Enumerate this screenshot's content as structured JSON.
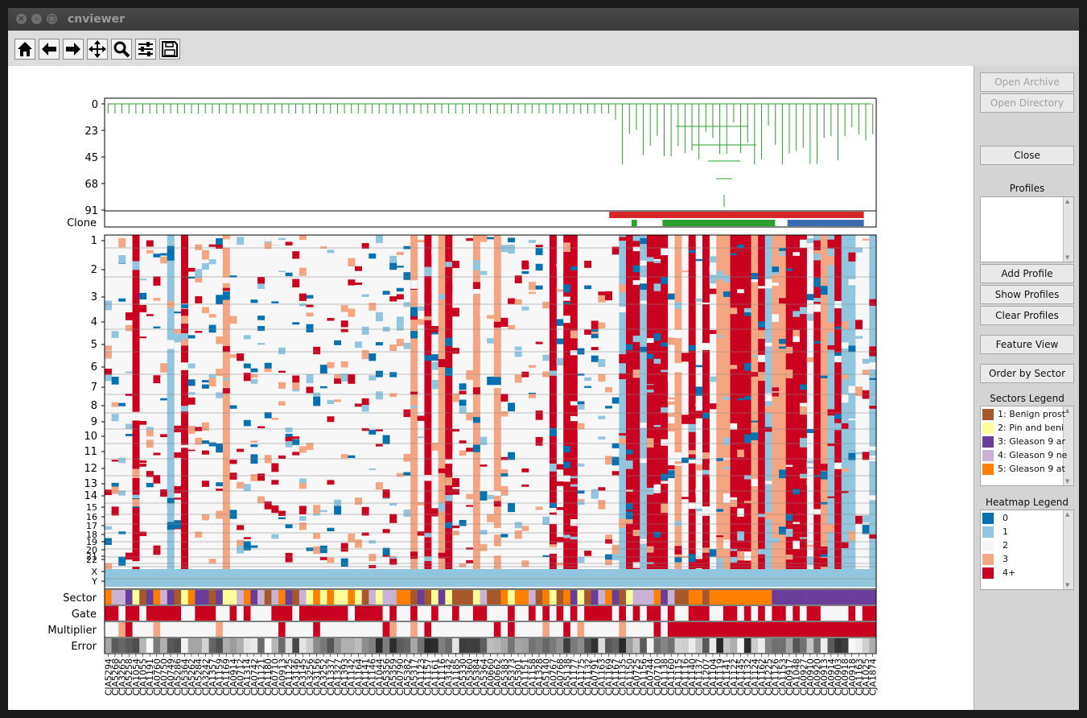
{
  "window": {
    "title": "cnviewer"
  },
  "toolbar": {
    "icons": [
      "home-icon",
      "back-arrow-icon",
      "forward-arrow-icon",
      "pan-icon",
      "zoom-icon",
      "configure-icon",
      "save-icon"
    ]
  },
  "sidebar": {
    "open_archive": "Open Archive",
    "open_directory": "Open Directory",
    "close": "Close",
    "profiles_label": "Profiles",
    "add_profile": "Add Profile",
    "show_profiles": "Show Profiles",
    "clear_profiles": "Clear Profiles",
    "feature_view": "Feature View",
    "order_by_sector": "Order by Sector",
    "sectors_legend_label": "Sectors Legend",
    "sectors": [
      {
        "label": "1: Benign prost",
        "color": "#a6582a"
      },
      {
        "label": "2: Pin and beni",
        "color": "#ffff99"
      },
      {
        "label": "3: Gleason 9 ar",
        "color": "#6a3d9a"
      },
      {
        "label": "4: Gleason 9 ne",
        "color": "#cab2d6"
      },
      {
        "label": "5: Gleason 9 at",
        "color": "#ff7f00"
      }
    ],
    "heatmap_legend_label": "Heatmap Legend",
    "heatmap": [
      {
        "label": "0",
        "color": "#0571b0"
      },
      {
        "label": "1",
        "color": "#92c5de"
      },
      {
        "label": "2",
        "color": "#f7f7f7"
      },
      {
        "label": "3",
        "color": "#f4a582"
      },
      {
        "label": "4+",
        "color": "#ca0020"
      }
    ]
  },
  "plot": {
    "dendro_ticks": [
      "0",
      "23",
      "45",
      "68",
      "91"
    ],
    "clone_label": "Clone",
    "chrom_labels": [
      "1",
      "2",
      "3",
      "4",
      "5",
      "6",
      "7",
      "8",
      "9",
      "10",
      "11",
      "12",
      "13",
      "14",
      "15",
      "16",
      "17",
      "18",
      "19",
      "20",
      "21",
      "22",
      "X",
      "Y"
    ],
    "track_labels": {
      "sector": "Sector",
      "gate": "Gate",
      "multiplier": "Multiplier",
      "error": "Error"
    },
    "cells": [
      "CJA5294",
      "CJA5268",
      "CJA3265",
      "CJA5258",
      "CJA1054",
      "CJA1055",
      "CJA1191",
      "CJA0760",
      "CJA0750",
      "CJA0749",
      "CJA5286",
      "CJA5364",
      "CJA5262",
      "CJA5284",
      "CJA3242",
      "CJA1357",
      "CJA1159",
      "CJA1169",
      "CJA0914",
      "CJA0712",
      "CJA1314",
      "CJA0742",
      "CJA1121",
      "CJA1180",
      "CJA0710",
      "CJA0913",
      "CJA1125",
      "CJA3146",
      "CJA3145",
      "CJA3256",
      "CJA3156",
      "CJA3252",
      "CJA1337",
      "CJA1327",
      "CJA1393",
      "CJA1142",
      "CJA1164",
      "CJA1141",
      "CJA1146",
      "CJA1044",
      "CJA5356",
      "CJA5359",
      "CJA0790",
      "CJA5382",
      "CJA5317",
      "CJA1123",
      "CJA1157",
      "CJA1161",
      "CJA1116",
      "CJA3142",
      "CJA1185",
      "CJA5330",
      "CJA5360",
      "CJA5384",
      "CJA5364",
      "CJA0660",
      "CJA0662",
      "CJA5383",
      "CJA5373",
      "CJA5301",
      "CJA1151",
      "CJA1158",
      "CJA1328",
      "CJA5140",
      "CJA0767",
      "CJA0768",
      "CJA5138",
      "CJA1177",
      "CJA1175",
      "CJA1132",
      "CJA0791",
      "CJA1163",
      "CJA1169",
      "CJA1167",
      "CJA1135",
      "CJA1150",
      "CJA0725",
      "CJA1156",
      "CJA0744",
      "CJA0710",
      "CJA1138",
      "CJA1160",
      "CJA1115",
      "CJA1116",
      "CJA1140",
      "CJA1137",
      "CJA1207",
      "CJA1104",
      "CJA1119",
      "CJA1141",
      "CJA1122",
      "CJA1145",
      "CJA1132",
      "CJA1124",
      "CJA1162",
      "CJA1225",
      "CJA1126",
      "CJA1153",
      "CJA0917",
      "CJA1048",
      "CJA0927",
      "CJA0910",
      "CJA0920",
      "CJA0913",
      "CJA0914",
      "CJA0903",
      "CJA0918",
      "CJA0918",
      "CJA1163",
      "CJA1025",
      "CJA1874"
    ],
    "clone_bars": [
      {
        "from": 0.654,
        "to": 0.984,
        "color": "#d62728"
      },
      {
        "from": 0.683,
        "to": 0.69,
        "color": "#2ca02c"
      },
      {
        "from": 0.723,
        "to": 0.869,
        "color": "#2ca02c"
      },
      {
        "from": 0.885,
        "to": 0.984,
        "color": "#3a6ab0"
      }
    ]
  }
}
